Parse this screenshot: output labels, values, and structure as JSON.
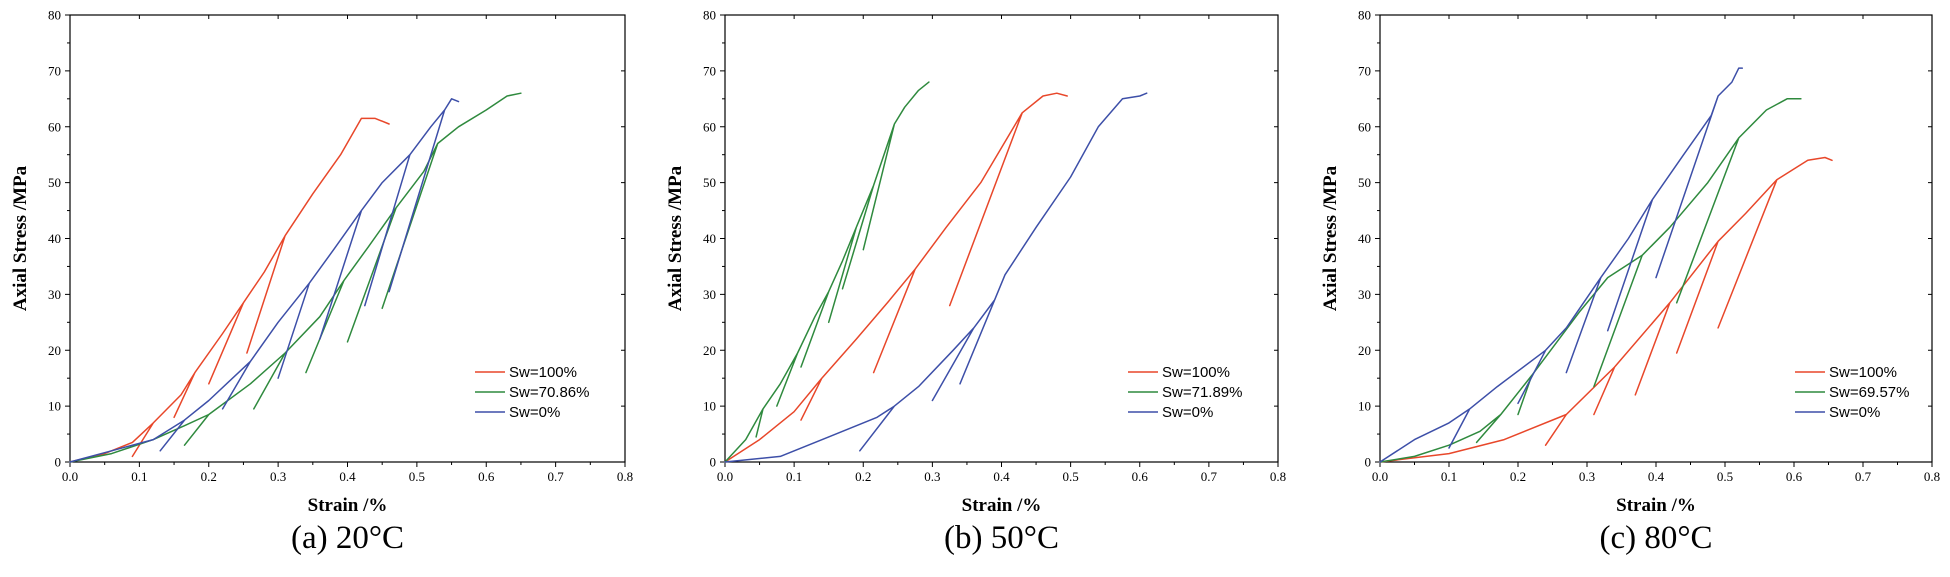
{
  "chart_data": [
    {
      "type": "line",
      "caption": "(a) 20°C",
      "xlabel": "Strain /%",
      "ylabel": "Axial Stress /MPa",
      "xlim": [
        0,
        0.8
      ],
      "ylim": [
        0,
        80
      ],
      "xticks": [
        "0.0",
        "0.1",
        "0.2",
        "0.3",
        "0.4",
        "0.5",
        "0.6",
        "0.7",
        "0.8"
      ],
      "yticks": [
        "0",
        "10",
        "20",
        "30",
        "40",
        "50",
        "60",
        "70",
        "80"
      ],
      "legend_position": "lower-right",
      "series": [
        {
          "name": "Sw=100%",
          "color": "#e8472a",
          "points": [
            [
              0,
              0
            ],
            [
              0.05,
              1.5
            ],
            [
              0.09,
              3.5
            ],
            [
              0.12,
              7
            ],
            [
              0.09,
              1
            ],
            [
              0.12,
              7
            ],
            [
              0.16,
              12
            ],
            [
              0.18,
              16
            ],
            [
              0.15,
              8
            ],
            [
              0.18,
              16
            ],
            [
              0.22,
              23
            ],
            [
              0.25,
              28.5
            ],
            [
              0.2,
              14
            ],
            [
              0.25,
              28.5
            ],
            [
              0.28,
              34
            ],
            [
              0.31,
              40.5
            ],
            [
              0.255,
              19.5
            ],
            [
              0.31,
              40.5
            ],
            [
              0.35,
              48
            ],
            [
              0.39,
              55
            ],
            [
              0.42,
              61.5
            ],
            [
              0.44,
              61.5
            ],
            [
              0.46,
              60.5
            ]
          ]
        },
        {
          "name": "Sw=70.86%",
          "color": "#2f8a3e",
          "points": [
            [
              0,
              0
            ],
            [
              0.06,
              1.5
            ],
            [
              0.12,
              4
            ],
            [
              0.165,
              6.5
            ],
            [
              0.2,
              8.5
            ],
            [
              0.165,
              3
            ],
            [
              0.2,
              8.5
            ],
            [
              0.26,
              14
            ],
            [
              0.31,
              19.5
            ],
            [
              0.265,
              9.5
            ],
            [
              0.31,
              19.5
            ],
            [
              0.36,
              26
            ],
            [
              0.395,
              32.5
            ],
            [
              0.34,
              16
            ],
            [
              0.395,
              32.5
            ],
            [
              0.43,
              38.5
            ],
            [
              0.47,
              45.5
            ],
            [
              0.4,
              21.5
            ],
            [
              0.47,
              45.5
            ],
            [
              0.51,
              52
            ],
            [
              0.53,
              57
            ],
            [
              0.45,
              27.5
            ],
            [
              0.53,
              57
            ],
            [
              0.56,
              60
            ],
            [
              0.6,
              63
            ],
            [
              0.63,
              65.5
            ],
            [
              0.65,
              66
            ]
          ]
        },
        {
          "name": "Sw=0%",
          "color": "#3d4fa8",
          "points": [
            [
              0,
              0
            ],
            [
              0.06,
              2
            ],
            [
              0.12,
              4
            ],
            [
              0.165,
              7.5
            ],
            [
              0.13,
              2
            ],
            [
              0.165,
              7.5
            ],
            [
              0.2,
              11
            ],
            [
              0.26,
              18
            ],
            [
              0.22,
              9.5
            ],
            [
              0.26,
              18
            ],
            [
              0.3,
              25
            ],
            [
              0.345,
              32
            ],
            [
              0.3,
              15
            ],
            [
              0.345,
              32
            ],
            [
              0.38,
              38
            ],
            [
              0.42,
              45
            ],
            [
              0.36,
              22
            ],
            [
              0.42,
              45
            ],
            [
              0.45,
              50
            ],
            [
              0.49,
              55
            ],
            [
              0.425,
              28
            ],
            [
              0.49,
              55
            ],
            [
              0.52,
              60
            ],
            [
              0.54,
              63
            ],
            [
              0.46,
              30.5
            ],
            [
              0.54,
              63
            ],
            [
              0.55,
              65
            ],
            [
              0.56,
              64.5
            ]
          ]
        }
      ]
    },
    {
      "type": "line",
      "caption": "(b) 50°C",
      "xlabel": "Strain /%",
      "ylabel": "Axial Stress /MPa",
      "xlim": [
        0,
        0.8
      ],
      "ylim": [
        0,
        80
      ],
      "xticks": [
        "0.0",
        "0.1",
        "0.2",
        "0.3",
        "0.4",
        "0.5",
        "0.6",
        "0.7",
        "0.8"
      ],
      "yticks": [
        "0",
        "10",
        "20",
        "30",
        "40",
        "50",
        "60",
        "70",
        "80"
      ],
      "legend_position": "lower-right",
      "series": [
        {
          "name": "Sw=100%",
          "color": "#e8472a",
          "points": [
            [
              0,
              0
            ],
            [
              0.05,
              4
            ],
            [
              0.1,
              9
            ],
            [
              0.14,
              15
            ],
            [
              0.11,
              7.5
            ],
            [
              0.14,
              15
            ],
            [
              0.19,
              22
            ],
            [
              0.235,
              28.5
            ],
            [
              0.275,
              34.5
            ],
            [
              0.215,
              16
            ],
            [
              0.275,
              34.5
            ],
            [
              0.32,
              42
            ],
            [
              0.37,
              50
            ],
            [
              0.43,
              62.5
            ],
            [
              0.325,
              28
            ],
            [
              0.43,
              62.5
            ],
            [
              0.46,
              65.5
            ],
            [
              0.48,
              66
            ],
            [
              0.495,
              65.5
            ]
          ]
        },
        {
          "name": "Sw=71.89%",
          "color": "#2f8a3e",
          "points": [
            [
              0,
              0
            ],
            [
              0.03,
              4
            ],
            [
              0.055,
              9.5
            ],
            [
              0.045,
              4.5
            ],
            [
              0.055,
              9.5
            ],
            [
              0.08,
              14
            ],
            [
              0.105,
              19.5
            ],
            [
              0.075,
              10
            ],
            [
              0.105,
              19.5
            ],
            [
              0.13,
              26
            ],
            [
              0.15,
              30.5
            ],
            [
              0.11,
              17
            ],
            [
              0.15,
              30.5
            ],
            [
              0.17,
              36
            ],
            [
              0.19,
              42
            ],
            [
              0.15,
              25
            ],
            [
              0.19,
              42
            ],
            [
              0.215,
              49.5
            ],
            [
              0.17,
              31
            ],
            [
              0.215,
              49.5
            ],
            [
              0.245,
              60.5
            ],
            [
              0.2,
              38
            ],
            [
              0.245,
              60.5
            ],
            [
              0.26,
              63.5
            ],
            [
              0.28,
              66.5
            ],
            [
              0.295,
              68
            ]
          ]
        },
        {
          "name": "Sw=0%",
          "color": "#3d4fa8",
          "points": [
            [
              0,
              0
            ],
            [
              0.08,
              1
            ],
            [
              0.15,
              4.5
            ],
            [
              0.22,
              8
            ],
            [
              0.245,
              10
            ],
            [
              0.195,
              2
            ],
            [
              0.245,
              10
            ],
            [
              0.28,
              13.5
            ],
            [
              0.33,
              20
            ],
            [
              0.36,
              24
            ],
            [
              0.3,
              11
            ],
            [
              0.36,
              24
            ],
            [
              0.39,
              29
            ],
            [
              0.405,
              33.5
            ],
            [
              0.34,
              14
            ],
            [
              0.405,
              33.5
            ],
            [
              0.45,
              42
            ],
            [
              0.5,
              51
            ],
            [
              0.54,
              60
            ],
            [
              0.575,
              65
            ],
            [
              0.6,
              65.5
            ],
            [
              0.61,
              66
            ]
          ]
        }
      ]
    },
    {
      "type": "line",
      "caption": "(c) 80°C",
      "xlabel": "Strain /%",
      "ylabel": "Axial Stress /MPa",
      "xlim": [
        0,
        0.8
      ],
      "ylim": [
        0,
        80
      ],
      "xticks": [
        "0.0",
        "0.1",
        "0.2",
        "0.3",
        "0.4",
        "0.5",
        "0.6",
        "0.7",
        "0.8"
      ],
      "yticks": [
        "0",
        "10",
        "20",
        "30",
        "40",
        "50",
        "60",
        "70",
        "80"
      ],
      "legend_position": "lower-right",
      "series": [
        {
          "name": "Sw=100%",
          "color": "#e8472a",
          "points": [
            [
              0,
              0
            ],
            [
              0.1,
              1.5
            ],
            [
              0.18,
              4
            ],
            [
              0.27,
              8.5
            ],
            [
              0.24,
              3
            ],
            [
              0.27,
              8.5
            ],
            [
              0.34,
              17
            ],
            [
              0.31,
              8.5
            ],
            [
              0.34,
              17
            ],
            [
              0.42,
              28.5
            ],
            [
              0.37,
              12
            ],
            [
              0.42,
              28.5
            ],
            [
              0.49,
              39.5
            ],
            [
              0.43,
              19.5
            ],
            [
              0.49,
              39.5
            ],
            [
              0.53,
              44.5
            ],
            [
              0.575,
              50.5
            ],
            [
              0.49,
              24
            ],
            [
              0.575,
              50.5
            ],
            [
              0.62,
              54
            ],
            [
              0.645,
              54.5
            ],
            [
              0.655,
              54
            ]
          ]
        },
        {
          "name": "Sw=69.57%",
          "color": "#2f8a3e",
          "points": [
            [
              0,
              0
            ],
            [
              0.05,
              1
            ],
            [
              0.1,
              3
            ],
            [
              0.145,
              5.5
            ],
            [
              0.175,
              8.5
            ],
            [
              0.14,
              3.5
            ],
            [
              0.175,
              8.5
            ],
            [
              0.22,
              15.5
            ],
            [
              0.2,
              8.5
            ],
            [
              0.22,
              15.5
            ],
            [
              0.29,
              27
            ],
            [
              0.33,
              33
            ],
            [
              0.38,
              37
            ],
            [
              0.31,
              13.5
            ],
            [
              0.38,
              37
            ],
            [
              0.42,
              42
            ],
            [
              0.475,
              50
            ],
            [
              0.52,
              58
            ],
            [
              0.43,
              28.5
            ],
            [
              0.52,
              58
            ],
            [
              0.56,
              63
            ],
            [
              0.59,
              65
            ],
            [
              0.61,
              65
            ]
          ]
        },
        {
          "name": "Sw=0%",
          "color": "#3d4fa8",
          "points": [
            [
              0,
              0
            ],
            [
              0.05,
              4
            ],
            [
              0.1,
              7
            ],
            [
              0.13,
              9.5
            ],
            [
              0.1,
              2.5
            ],
            [
              0.13,
              9.5
            ],
            [
              0.17,
              13.5
            ],
            [
              0.24,
              20
            ],
            [
              0.2,
              10.5
            ],
            [
              0.24,
              20
            ],
            [
              0.27,
              24
            ],
            [
              0.32,
              33
            ],
            [
              0.27,
              16
            ],
            [
              0.32,
              33
            ],
            [
              0.36,
              40
            ],
            [
              0.395,
              47
            ],
            [
              0.33,
              23.5
            ],
            [
              0.395,
              47
            ],
            [
              0.44,
              55
            ],
            [
              0.48,
              62
            ],
            [
              0.49,
              65.5
            ],
            [
              0.4,
              33
            ],
            [
              0.49,
              65.5
            ],
            [
              0.51,
              68
            ],
            [
              0.52,
              70.5
            ],
            [
              0.525,
              70.5
            ]
          ]
        }
      ]
    }
  ]
}
